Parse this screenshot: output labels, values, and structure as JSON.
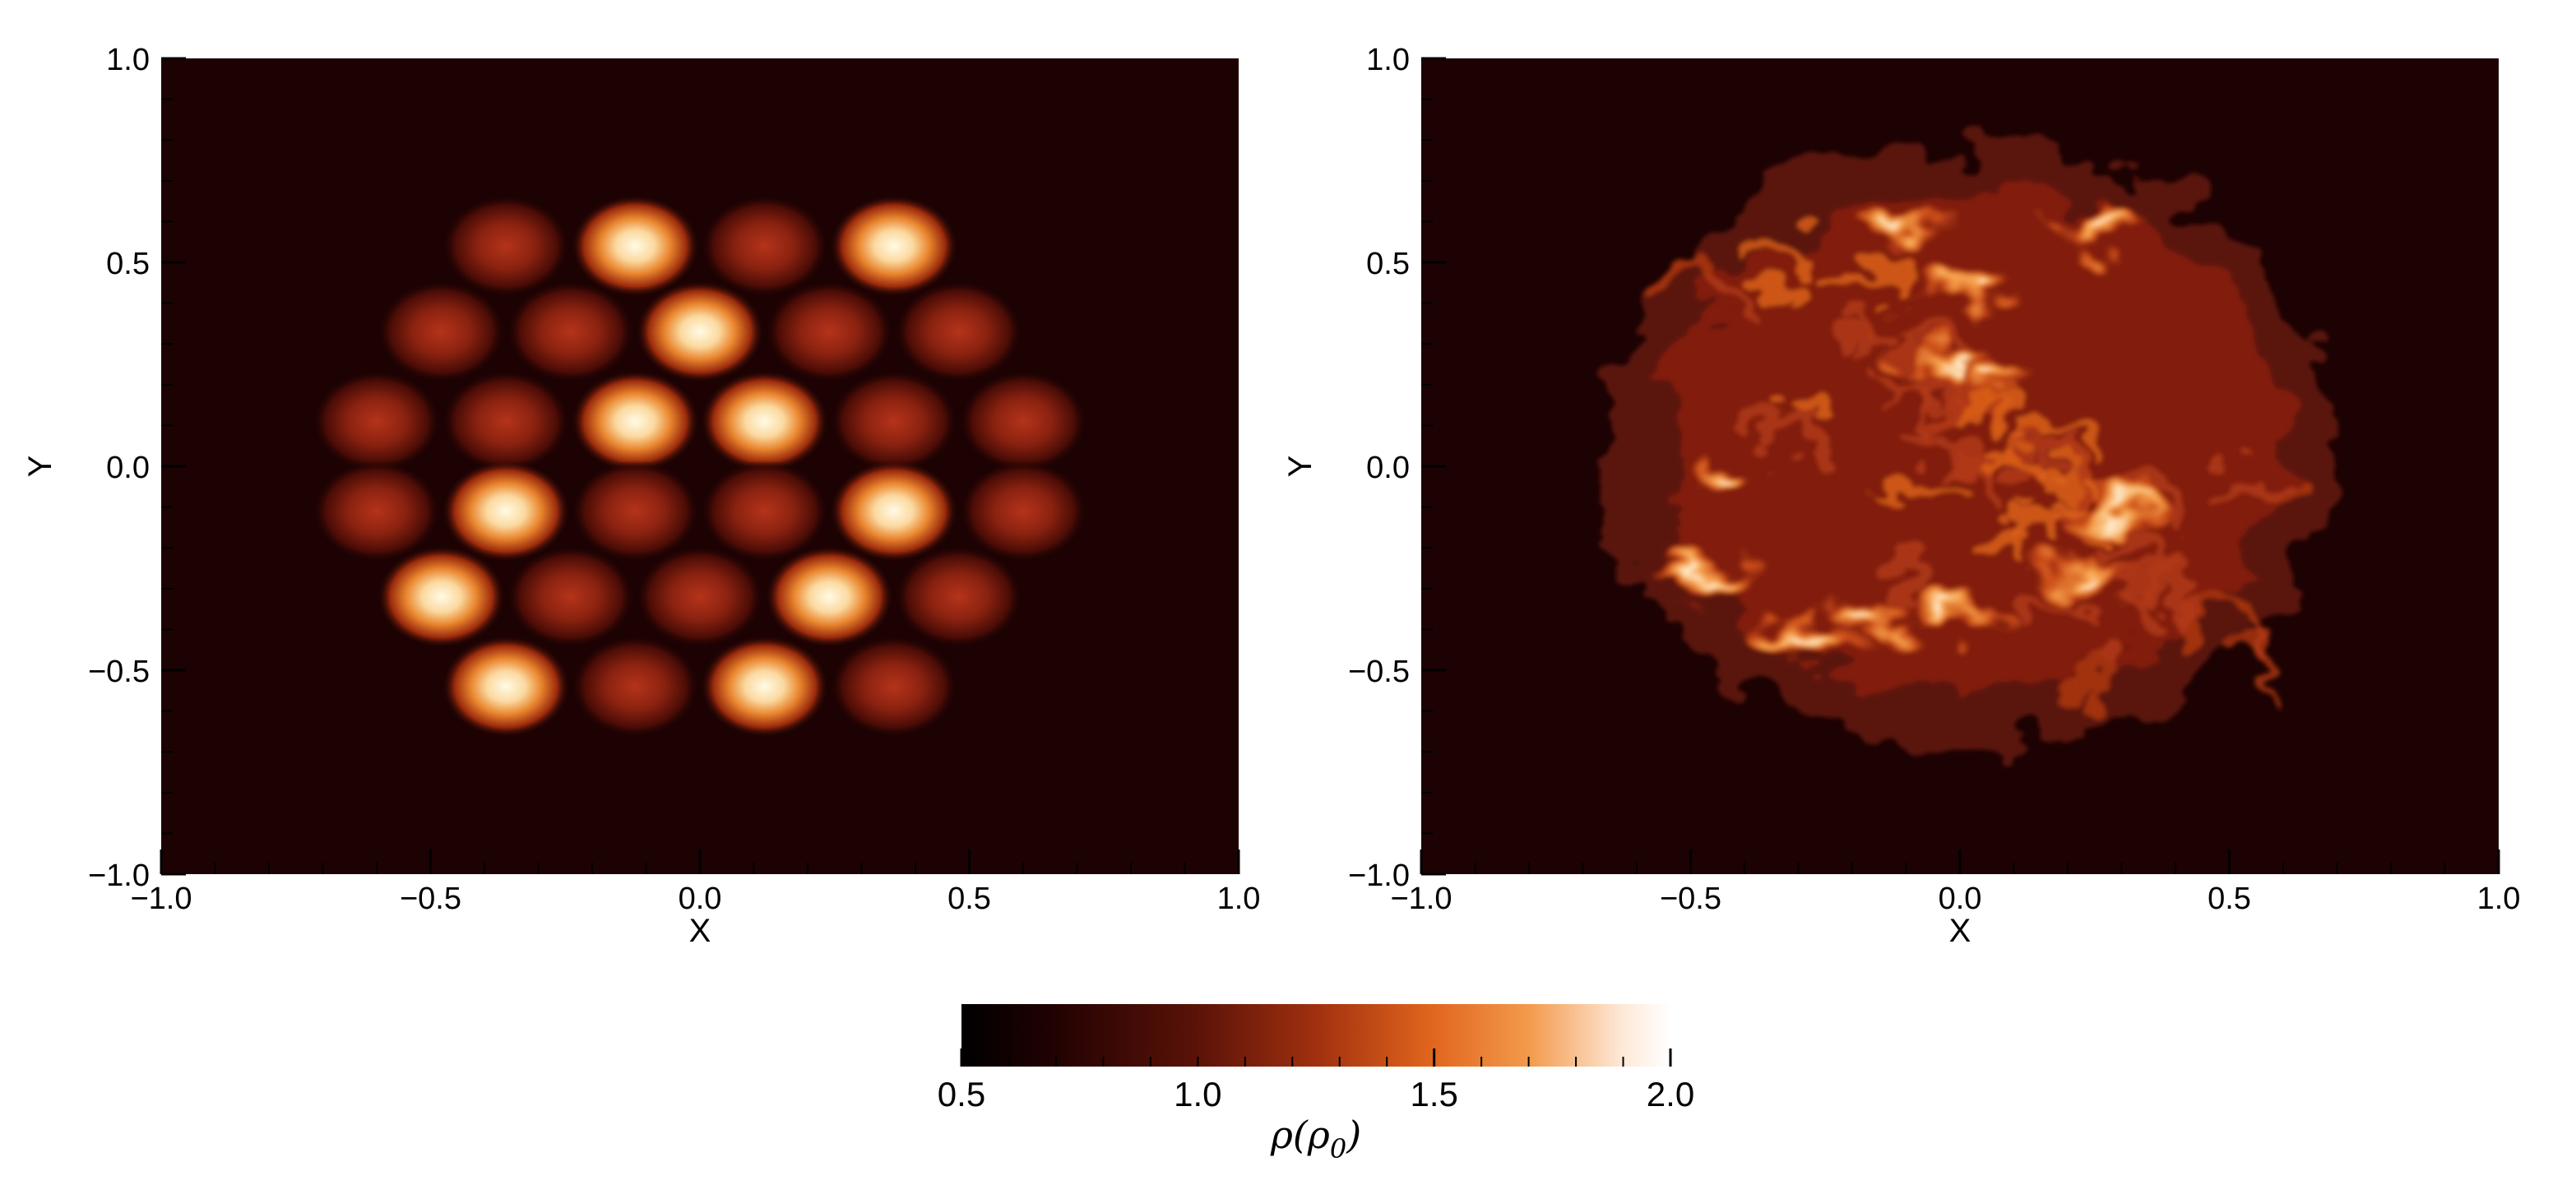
{
  "colors": {
    "background": "#ffffff",
    "axis": "#000000",
    "colormap": [
      "#000000",
      "#1f0102",
      "#5a1208",
      "#a0300f",
      "#e0641c",
      "#f39a4c",
      "#fde8d6",
      "#ffffff"
    ],
    "map_background": "#1c0203"
  },
  "chart_data": [
    {
      "type": "heatmap",
      "title": "",
      "xlabel": "X",
      "ylabel": "Y",
      "xlim": [
        -1.0,
        1.0
      ],
      "ylim": [
        -1.0,
        1.0
      ],
      "xticks": [
        "-1.0",
        "-0.5",
        "0.0",
        "0.5",
        "1.0"
      ],
      "yticks": [
        "-1.0",
        "-0.5",
        "0.0",
        "0.5",
        "1.0"
      ],
      "grid": false,
      "blobs": [
        {
          "x": -0.36,
          "y": 0.54,
          "rho": 1.12
        },
        {
          "x": -0.12,
          "y": 0.54,
          "rho": 1.88
        },
        {
          "x": 0.12,
          "y": 0.54,
          "rho": 1.12
        },
        {
          "x": 0.36,
          "y": 0.54,
          "rho": 1.88
        },
        {
          "x": -0.48,
          "y": 0.33,
          "rho": 1.12
        },
        {
          "x": -0.24,
          "y": 0.33,
          "rho": 1.12
        },
        {
          "x": 0.0,
          "y": 0.33,
          "rho": 1.88
        },
        {
          "x": 0.24,
          "y": 0.33,
          "rho": 1.12
        },
        {
          "x": 0.48,
          "y": 0.33,
          "rho": 1.12
        },
        {
          "x": -0.6,
          "y": 0.11,
          "rho": 1.12
        },
        {
          "x": -0.36,
          "y": 0.11,
          "rho": 1.12
        },
        {
          "x": -0.12,
          "y": 0.11,
          "rho": 1.88
        },
        {
          "x": 0.12,
          "y": 0.11,
          "rho": 1.88
        },
        {
          "x": 0.36,
          "y": 0.11,
          "rho": 1.12
        },
        {
          "x": 0.6,
          "y": 0.11,
          "rho": 1.12
        },
        {
          "x": -0.6,
          "y": -0.11,
          "rho": 1.12
        },
        {
          "x": -0.36,
          "y": -0.11,
          "rho": 1.88
        },
        {
          "x": -0.12,
          "y": -0.11,
          "rho": 1.12
        },
        {
          "x": 0.12,
          "y": -0.11,
          "rho": 1.12
        },
        {
          "x": 0.36,
          "y": -0.11,
          "rho": 1.88
        },
        {
          "x": 0.6,
          "y": -0.11,
          "rho": 1.12
        },
        {
          "x": -0.48,
          "y": -0.32,
          "rho": 1.88
        },
        {
          "x": -0.24,
          "y": -0.32,
          "rho": 1.12
        },
        {
          "x": 0.0,
          "y": -0.32,
          "rho": 1.12
        },
        {
          "x": 0.24,
          "y": -0.32,
          "rho": 1.88
        },
        {
          "x": 0.48,
          "y": -0.32,
          "rho": 1.12
        },
        {
          "x": -0.36,
          "y": -0.54,
          "rho": 1.88
        },
        {
          "x": -0.12,
          "y": -0.54,
          "rho": 1.12
        },
        {
          "x": 0.12,
          "y": -0.54,
          "rho": 1.88
        },
        {
          "x": 0.36,
          "y": -0.54,
          "rho": 1.12
        }
      ]
    },
    {
      "type": "heatmap",
      "title": "",
      "xlabel": "X",
      "ylabel": "Y",
      "xlim": [
        -1.0,
        1.0
      ],
      "ylim": [
        -1.0,
        1.0
      ],
      "xticks": [
        "-1.0",
        "-0.5",
        "0.0",
        "0.5",
        "1.0"
      ],
      "yticks": [
        "-1.0",
        "-0.5",
        "0.0",
        "0.5",
        "1.0"
      ],
      "grid": false,
      "turbulent_region": {
        "x_range": [
          -0.72,
          0.76
        ],
        "y_range": [
          -0.78,
          0.9
        ]
      },
      "hot_spots": [
        {
          "x": -0.12,
          "y": 0.58,
          "rho": 1.9
        },
        {
          "x": 0.0,
          "y": 0.42,
          "rho": 1.85
        },
        {
          "x": 0.28,
          "y": 0.58,
          "rho": 1.7
        },
        {
          "x": -0.03,
          "y": 0.25,
          "rho": 1.8
        },
        {
          "x": 0.06,
          "y": 0.22,
          "rho": 1.75
        },
        {
          "x": -0.43,
          "y": -0.05,
          "rho": 1.8
        },
        {
          "x": -0.46,
          "y": -0.28,
          "rho": 1.7
        },
        {
          "x": -0.18,
          "y": -0.36,
          "rho": 1.7
        },
        {
          "x": 0.0,
          "y": -0.36,
          "rho": 1.65
        },
        {
          "x": 0.3,
          "y": -0.1,
          "rho": 1.8
        },
        {
          "x": 0.24,
          "y": -0.26,
          "rho": 1.7
        },
        {
          "x": -0.3,
          "y": -0.42,
          "rho": 1.6
        }
      ]
    }
  ],
  "colorbar": {
    "min": 0.5,
    "max": 2.0,
    "ticks": [
      "0.5",
      "1.0",
      "1.5",
      "2.0"
    ],
    "label_main": "ρ(ρ",
    "label_sub": "0",
    "label_end": ")"
  }
}
